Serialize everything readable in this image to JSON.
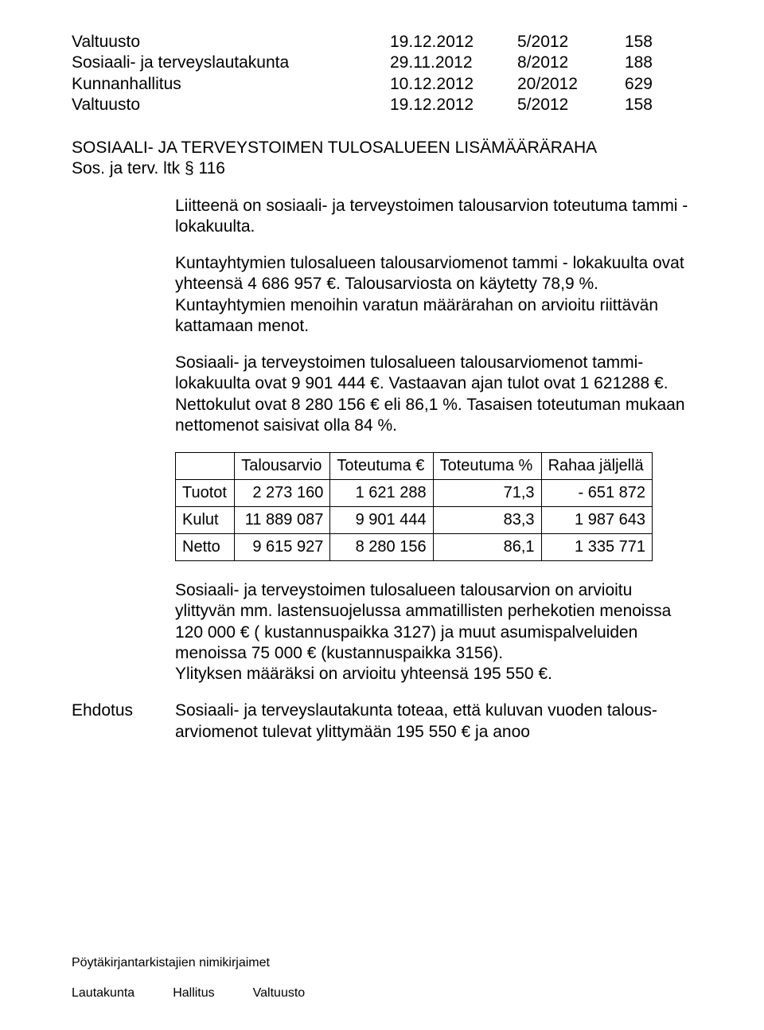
{
  "headings": [
    {
      "left": "Valtuusto",
      "date": "19.12.2012",
      "ref": "5/2012",
      "num": "158"
    },
    {
      "left": "Sosiaali- ja terveyslautakunta",
      "date": "29.11.2012",
      "ref": "8/2012",
      "num": "188"
    },
    {
      "left": "Kunnanhallitus",
      "date": "10.12.2012",
      "ref": "20/2012",
      "num": "629"
    },
    {
      "left": "Valtuusto",
      "date": "19.12.2012",
      "ref": "5/2012",
      "num": "158"
    }
  ],
  "section_title_1": "SOSIAALI- JA TERVEYSTOIMEN TULOSALUEEN LISÄMÄÄRÄRAHA",
  "section_title_2": "Sos. ja terv. ltk § 116",
  "para1": "Liitteenä on sosiaali- ja terveystoimen talousarvion toteutuma tammi - lokakuulta.",
  "para2": "Kuntayhtymien tulosalueen talousarviomenot tammi - lokakuulta ovat yhteensä 4 686 957 €. Talousarviosta on käytetty 78,9 %.",
  "para2b": "Kuntayhtymien menoihin varatun määrärahan on arvioitu riittävän kattamaan menot.",
  "para3": "Sosiaali- ja terveystoimen tulosalueen talousarviomenot tammi- lokakuulta ovat 9 901 444 €. Vastaavan ajan tulot ovat 1 621288 €. Nettokulut ovat 8 280 156 € eli 86,1 %. Tasaisen toteutuman mukaan nettomenot saisivat olla 84 %.",
  "table": {
    "type": "table",
    "columns": [
      "",
      "Talousarvio",
      "Toteutuma €",
      "Toteutuma %",
      "Rahaa jäljellä"
    ],
    "rows": [
      [
        "Tuotot",
        "2 273 160",
        "1 621 288",
        "71,3",
        "- 651 872"
      ],
      [
        "Kulut",
        "11 889 087",
        "9 901 444",
        "83,3",
        "1 987 643"
      ],
      [
        "Netto",
        "9 615 927",
        "8 280 156",
        "86,1",
        "1 335 771"
      ]
    ],
    "border_color": "#000000",
    "background_color": "#ffffff",
    "font_size_pt": 15,
    "col_align": [
      "left",
      "right",
      "right",
      "right",
      "right"
    ]
  },
  "para4": "Sosiaali- ja terveystoimen tulosalueen talousarvion on arvioitu ylittyvän mm. lastensuojelussa ammatillisten perhekotien menoissa 120 000 € ( kustannuspaikka 3127) ja muut asumispalveluiden menoissa 75 000 € (kustannuspaikka 3156).",
  "para4b": "Ylityksen määräksi on arvioitu yhteensä 195 550 €.",
  "ehdotus_label": "Ehdotus",
  "ehdotus_text": "Sosiaali- ja terveyslautakunta toteaa, että kuluvan vuoden talous-arviomenot tulevat ylittymään 195 550 € ja anoo",
  "footer": {
    "line1": "Pöytäkirjantarkistajien nimikirjaimet",
    "cols": [
      "Lautakunta",
      "Hallitus",
      "Valtuusto"
    ]
  }
}
